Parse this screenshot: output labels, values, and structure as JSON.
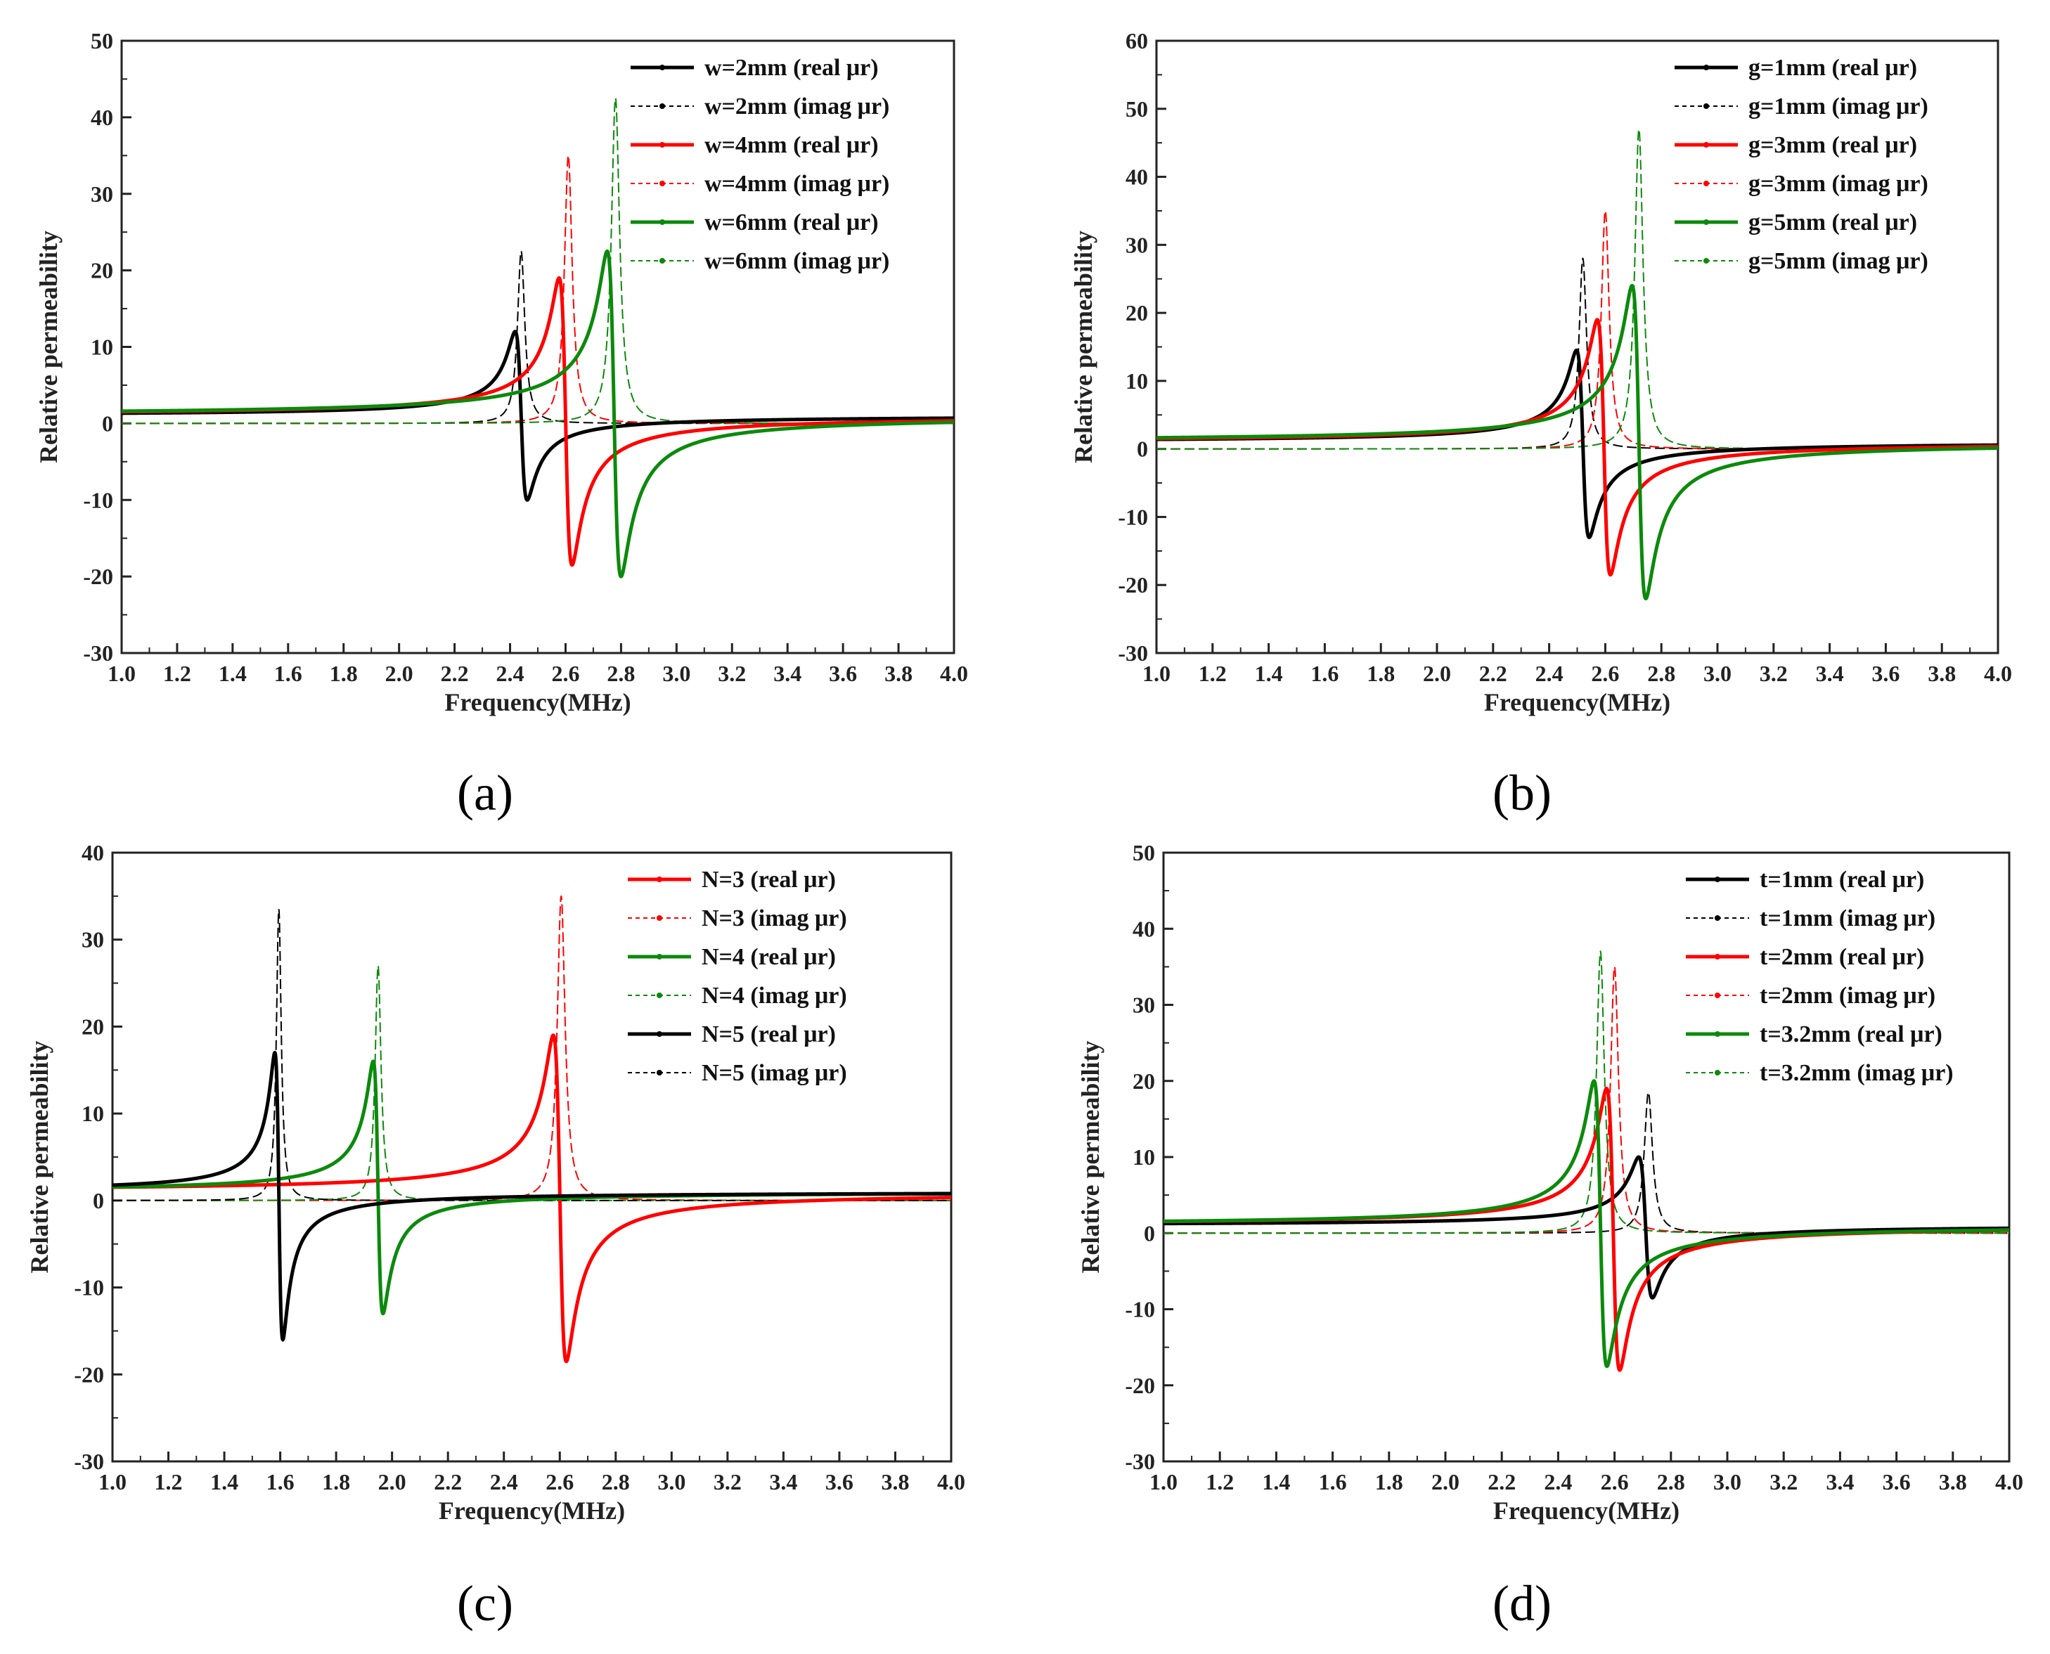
{
  "colors": {
    "black": "#000000",
    "red": "#ff0000",
    "green": "#0b8a0b",
    "frame": "#222222"
  },
  "chart_data": [
    {
      "type": "line",
      "caption": "(a)",
      "caption_letter": "a",
      "xlabel": "Frequency(MHz)",
      "ylabel": "Relative permeability",
      "xlim": [
        1.0,
        4.0
      ],
      "ylim": [
        -30,
        50
      ],
      "xticks": [
        "1.0",
        "1.2",
        "1.4",
        "1.6",
        "1.8",
        "2.0",
        "2.2",
        "2.4",
        "2.6",
        "2.8",
        "3.0",
        "3.2",
        "3.4",
        "3.6",
        "3.8",
        "4.0"
      ],
      "yticks": [
        "-30",
        "-20",
        "-10",
        "0",
        "10",
        "20",
        "30",
        "40",
        "50"
      ],
      "legend": "top-right",
      "series": [
        {
          "name": "w=2mm (real μr)",
          "kind": "real",
          "color": "black",
          "f0": 2.44,
          "min": -10,
          "max": 12
        },
        {
          "name": "w=2mm (imag μr)",
          "kind": "imag",
          "color": "black",
          "f0": 2.44,
          "max": 22.5
        },
        {
          "name": "w=4mm (real μr)",
          "kind": "real",
          "color": "red",
          "f0": 2.6,
          "min": -18.5,
          "max": 19
        },
        {
          "name": "w=4mm (imag μr)",
          "kind": "imag",
          "color": "red",
          "f0": 2.61,
          "max": 35
        },
        {
          "name": "w=6mm (real μr)",
          "kind": "real",
          "color": "green",
          "f0": 2.775,
          "min": -20,
          "max": 22.5
        },
        {
          "name": "w=6mm (imag μr)",
          "kind": "imag",
          "color": "green",
          "f0": 2.78,
          "max": 42.5
        }
      ]
    },
    {
      "type": "line",
      "caption": "(b)",
      "caption_letter": "b",
      "xlabel": "Frequency(MHz)",
      "ylabel": "Relative permeability",
      "xlim": [
        1.0,
        4.0
      ],
      "ylim": [
        -30,
        60
      ],
      "xticks": [
        "1.0",
        "1.2",
        "1.4",
        "1.6",
        "1.8",
        "2.0",
        "2.2",
        "2.4",
        "2.6",
        "2.8",
        "3.0",
        "3.2",
        "3.4",
        "3.6",
        "3.8",
        "4.0"
      ],
      "yticks": [
        "-30",
        "-20",
        "-10",
        "0",
        "10",
        "20",
        "30",
        "40",
        "50",
        "60"
      ],
      "legend": "top-right",
      "series": [
        {
          "name": "g=1mm (real μr)",
          "kind": "real",
          "color": "black",
          "f0": 2.52,
          "min": -13,
          "max": 14.5
        },
        {
          "name": "g=1mm (imag μr)",
          "kind": "imag",
          "color": "black",
          "f0": 2.52,
          "max": 28
        },
        {
          "name": "g=3mm (real μr)",
          "kind": "real",
          "color": "red",
          "f0": 2.595,
          "min": -18.5,
          "max": 19
        },
        {
          "name": "g=3mm (imag μr)",
          "kind": "imag",
          "color": "red",
          "f0": 2.6,
          "max": 35
        },
        {
          "name": "g=5mm (real μr)",
          "kind": "real",
          "color": "green",
          "f0": 2.72,
          "min": -22,
          "max": 24
        },
        {
          "name": "g=5mm (imag μr)",
          "kind": "imag",
          "color": "green",
          "f0": 2.72,
          "max": 47
        }
      ]
    },
    {
      "type": "line",
      "caption": "(c)",
      "caption_letter": "c",
      "xlabel": "Frequency(MHz)",
      "ylabel": "Relative permeability",
      "xlim": [
        1.0,
        4.0
      ],
      "ylim": [
        -30,
        40
      ],
      "xticks": [
        "1.0",
        "1.2",
        "1.4",
        "1.6",
        "1.8",
        "2.0",
        "2.2",
        "2.4",
        "2.6",
        "2.8",
        "3.0",
        "3.2",
        "3.4",
        "3.6",
        "3.8",
        "4.0"
      ],
      "yticks": [
        "-30",
        "-20",
        "-10",
        "0",
        "10",
        "20",
        "30",
        "40"
      ],
      "legend": "top-right",
      "series": [
        {
          "name": "N=3 (real μr)",
          "kind": "real",
          "color": "red",
          "f0": 2.6,
          "min": -18.5,
          "max": 19
        },
        {
          "name": "N=3 (imag μr)",
          "kind": "imag",
          "color": "red",
          "f0": 2.605,
          "max": 35
        },
        {
          "name": "N=4 (real μr)",
          "kind": "real",
          "color": "green",
          "f0": 1.95,
          "min": -13,
          "max": 16
        },
        {
          "name": "N=4 (imag μr)",
          "kind": "imag",
          "color": "green",
          "f0": 1.95,
          "max": 27
        },
        {
          "name": "N=5 (real μr)",
          "kind": "real",
          "color": "black",
          "f0": 1.595,
          "min": -16,
          "max": 17
        },
        {
          "name": "N=5 (imag μr)",
          "kind": "imag",
          "color": "black",
          "f0": 1.595,
          "max": 33.5
        }
      ]
    },
    {
      "type": "line",
      "caption": "(d)",
      "caption_letter": "d",
      "xlabel": "Frequency(MHz)",
      "ylabel": "Relative permeability",
      "xlim": [
        1.0,
        4.0
      ],
      "ylim": [
        -30,
        50
      ],
      "xticks": [
        "1.0",
        "1.2",
        "1.4",
        "1.6",
        "1.8",
        "2.0",
        "2.2",
        "2.4",
        "2.6",
        "2.8",
        "3.0",
        "3.2",
        "3.4",
        "3.6",
        "3.8",
        "4.0"
      ],
      "yticks": [
        "-30",
        "-20",
        "-10",
        "0",
        "10",
        "20",
        "30",
        "40",
        "50"
      ],
      "legend": "top-right",
      "series": [
        {
          "name": "t=1mm (real μr)",
          "kind": "real",
          "color": "black",
          "f0": 2.71,
          "min": -8.5,
          "max": 10
        },
        {
          "name": "t=1mm (imag μr)",
          "kind": "imag",
          "color": "black",
          "f0": 2.72,
          "max": 18.5
        },
        {
          "name": "t=2mm (real μr)",
          "kind": "real",
          "color": "red",
          "f0": 2.595,
          "min": -18,
          "max": 19
        },
        {
          "name": "t=2mm (imag μr)",
          "kind": "imag",
          "color": "red",
          "f0": 2.6,
          "max": 35
        },
        {
          "name": "t=3.2mm (real μr)",
          "kind": "real",
          "color": "green",
          "f0": 2.55,
          "min": -17.5,
          "max": 20
        },
        {
          "name": "t=3.2mm (imag μr)",
          "kind": "imag",
          "color": "green",
          "f0": 2.55,
          "max": 37
        }
      ]
    }
  ]
}
